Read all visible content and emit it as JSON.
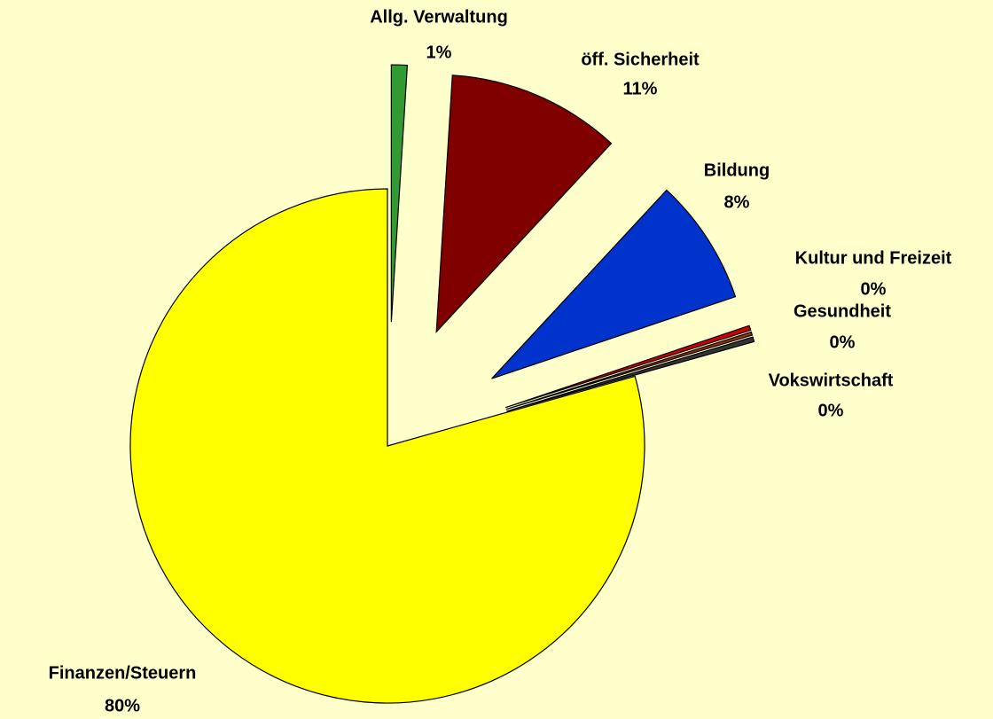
{
  "chart_data": {
    "type": "pie",
    "categories": [
      "Allg. Verwaltung",
      "öff. Sicherheit",
      "Bildung",
      "Kultur und Freizeit",
      "Gesundheit",
      "Vokswirtschaft",
      "Finanzen/Steuern"
    ],
    "values": [
      1,
      11,
      8,
      0.3,
      0.2,
      0.3,
      80
    ],
    "value_labels": [
      "1%",
      "11%",
      "8%",
      "0%",
      "0%",
      "0%",
      "80%"
    ],
    "colors": [
      "#339933",
      "#800000",
      "#0033cc",
      "#cc0000",
      "#993300",
      "#333333",
      "#ffff00"
    ],
    "explode": [
      true,
      true,
      true,
      true,
      true,
      true,
      false
    ]
  }
}
